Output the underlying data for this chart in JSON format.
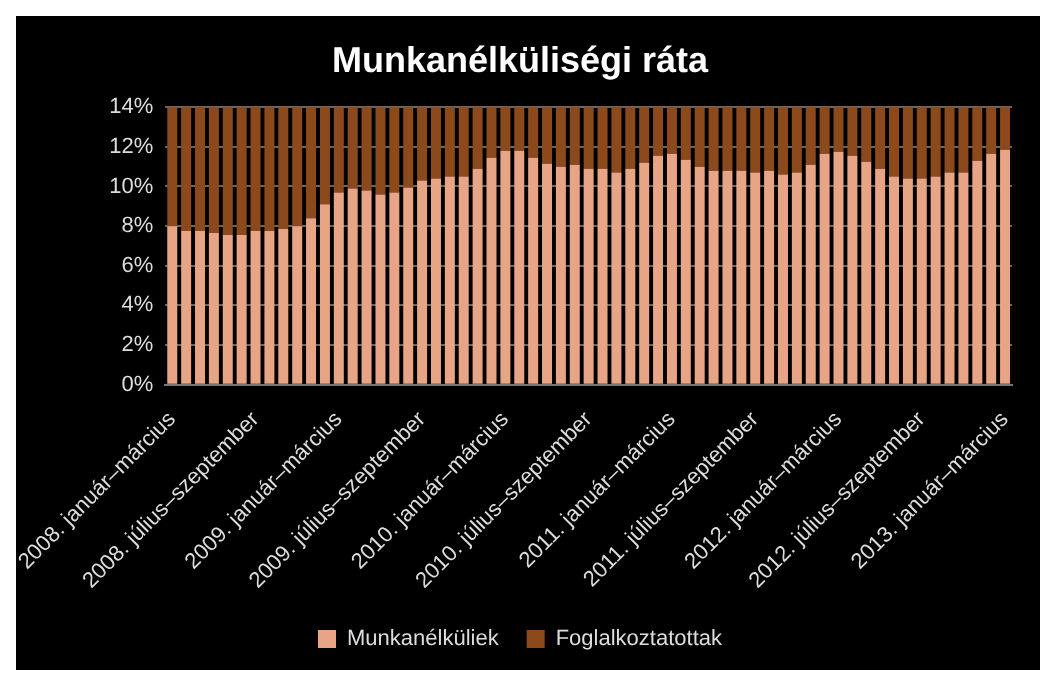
{
  "chart_data": {
    "type": "bar",
    "title": "Munkanélküliségi ráta",
    "stacked": true,
    "categories": [
      "2008. január–március",
      null,
      null,
      null,
      null,
      null,
      "2008. július–szeptember",
      null,
      null,
      null,
      null,
      null,
      "2009. január–március",
      null,
      null,
      null,
      null,
      null,
      "2009. július–szeptember",
      null,
      null,
      null,
      null,
      null,
      "2010. január–március",
      null,
      null,
      null,
      null,
      null,
      "2010. július–szeptember",
      null,
      null,
      null,
      null,
      null,
      "2011. január–március",
      null,
      null,
      null,
      null,
      null,
      "2011. július–szeptember",
      null,
      null,
      null,
      null,
      null,
      "2012. január–március",
      null,
      null,
      null,
      null,
      null,
      "2012. július–szeptember",
      null,
      null,
      null,
      null,
      null,
      "2013. január–március"
    ],
    "series": [
      {
        "name": "Munkanélküliek",
        "color": "#e8a586",
        "values": [
          8.0,
          7.75,
          7.75,
          7.65,
          7.55,
          7.55,
          7.75,
          7.75,
          7.85,
          8.0,
          8.4,
          9.1,
          9.7,
          9.9,
          9.8,
          9.6,
          9.7,
          9.95,
          10.3,
          10.4,
          10.5,
          10.5,
          10.9,
          11.45,
          11.8,
          11.8,
          11.45,
          11.15,
          11.0,
          11.1,
          10.9,
          10.9,
          10.7,
          10.9,
          11.2,
          11.55,
          11.65,
          11.35,
          11.0,
          10.8,
          10.8,
          10.8,
          10.7,
          10.8,
          10.6,
          10.7,
          11.1,
          11.65,
          11.75,
          11.55,
          11.25,
          10.9,
          10.5,
          10.4,
          10.4,
          10.5,
          10.7,
          10.7,
          11.3,
          11.65,
          11.85
        ]
      },
      {
        "name": "Foglalkoztatottak",
        "color": "#8c4a1c",
        "values": [
          6.0,
          6.25,
          6.25,
          6.35,
          6.45,
          6.45,
          6.25,
          6.25,
          6.15,
          6.0,
          5.6,
          4.9,
          4.3,
          4.1,
          4.2,
          4.4,
          4.3,
          4.05,
          3.7,
          3.6,
          3.5,
          3.5,
          3.1,
          2.55,
          2.2,
          2.2,
          2.55,
          2.85,
          3.0,
          2.9,
          3.1,
          3.1,
          3.3,
          3.1,
          2.8,
          2.45,
          2.35,
          2.65,
          3.0,
          3.2,
          3.2,
          3.2,
          3.3,
          3.2,
          3.4,
          3.3,
          2.9,
          2.35,
          2.25,
          2.45,
          2.75,
          3.1,
          3.5,
          3.6,
          3.6,
          3.5,
          3.3,
          3.3,
          2.7,
          2.35,
          2.15
        ]
      }
    ],
    "ylim": [
      0,
      14
    ],
    "yticks": [
      {
        "value": 0,
        "label": "0%"
      },
      {
        "value": 2,
        "label": "2%"
      },
      {
        "value": 4,
        "label": "4%"
      },
      {
        "value": 6,
        "label": "6%"
      },
      {
        "value": 8,
        "label": "8%"
      },
      {
        "value": 10,
        "label": "10%"
      },
      {
        "value": 12,
        "label": "12%"
      },
      {
        "value": 14,
        "label": "14%"
      }
    ],
    "grid": "y",
    "legend": "bottom"
  }
}
